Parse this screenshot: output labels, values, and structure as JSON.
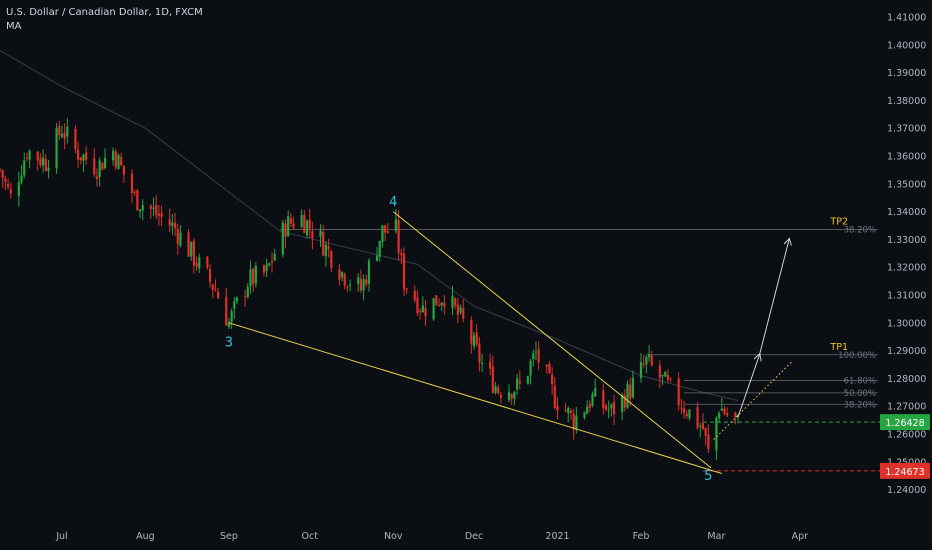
{
  "header": {
    "title": "U.S. Dollar / Canadian Dollar, 1D, FXCM",
    "indicator": "MA"
  },
  "colors": {
    "background": "#0b0e13",
    "up": "#26a641",
    "down": "#e0302a",
    "ma": "#3a3f48",
    "wedge": "#e8d44d",
    "wave_label": "#35c3d6",
    "level_line": "#8c8f96",
    "tp_label": "#f0c419",
    "arrow": "#cfd3da",
    "price_tag_green": "#26a641",
    "price_tag_red": "#e0302a",
    "axis_text": "#b2b5be"
  },
  "chart_data": {
    "type": "candlestick",
    "y_axis": {
      "ticks": [
        "1.41000",
        "1.40000",
        "1.39000",
        "1.38000",
        "1.37000",
        "1.36000",
        "1.35000",
        "1.34000",
        "1.33000",
        "1.32000",
        "1.31000",
        "1.30000",
        "1.29000",
        "1.28000",
        "1.27000",
        "1.26000",
        "1.25000",
        "1.24000"
      ],
      "range": [
        1.233,
        1.415
      ]
    },
    "x_axis": {
      "ticks": [
        "Jul",
        "Aug",
        "Sep",
        "Oct",
        "Nov",
        "Dec",
        "2021",
        "Feb",
        "Mar",
        "Apr"
      ],
      "range": [
        "2020-06-08",
        "2021-04-30"
      ]
    },
    "price_path": [
      [
        "2020-06-08",
        1.355
      ],
      [
        "2020-06-12",
        1.345
      ],
      [
        "2020-06-18",
        1.362
      ],
      [
        "2020-06-25",
        1.358
      ],
      [
        "2020-07-01",
        1.37
      ],
      [
        "2020-07-06",
        1.362
      ],
      [
        "2020-07-14",
        1.356
      ],
      [
        "2020-07-20",
        1.362
      ],
      [
        "2020-07-28",
        1.345
      ],
      [
        "2020-08-04",
        1.34
      ],
      [
        "2020-08-12",
        1.334
      ],
      [
        "2020-08-20",
        1.322
      ],
      [
        "2020-08-27",
        1.312
      ],
      [
        "2020-09-01",
        1.3
      ],
      [
        "2020-09-08",
        1.315
      ],
      [
        "2020-09-15",
        1.318
      ],
      [
        "2020-09-22",
        1.335
      ],
      [
        "2020-09-28",
        1.338
      ],
      [
        "2020-10-05",
        1.33
      ],
      [
        "2020-10-13",
        1.318
      ],
      [
        "2020-10-20",
        1.312
      ],
      [
        "2020-10-28",
        1.333
      ],
      [
        "2020-11-02",
        1.333
      ],
      [
        "2020-11-05",
        1.315
      ],
      [
        "2020-11-12",
        1.305
      ],
      [
        "2020-11-20",
        1.31
      ],
      [
        "2020-11-27",
        1.3
      ],
      [
        "2020-12-04",
        1.285
      ],
      [
        "2020-12-10",
        1.276
      ],
      [
        "2020-12-18",
        1.277
      ],
      [
        "2020-12-24",
        1.289
      ],
      [
        "2020-12-31",
        1.273
      ],
      [
        "2021-01-07",
        1.265
      ],
      [
        "2021-01-14",
        1.273
      ],
      [
        "2021-01-21",
        1.268
      ],
      [
        "2021-01-28",
        1.276
      ],
      [
        "2021-02-03",
        1.286
      ],
      [
        "2021-02-10",
        1.278
      ],
      [
        "2021-02-17",
        1.27
      ],
      [
        "2021-02-24",
        1.262
      ],
      [
        "2021-02-26",
        1.253
      ],
      [
        "2021-03-02",
        1.27
      ],
      [
        "2021-03-05",
        1.267
      ],
      [
        "2021-03-09",
        1.264
      ]
    ],
    "ma_path": [
      [
        "2020-06-08",
        1.398
      ],
      [
        "2020-07-01",
        1.385
      ],
      [
        "2020-08-01",
        1.37
      ],
      [
        "2020-09-01",
        1.347
      ],
      [
        "2020-09-20",
        1.333
      ],
      [
        "2020-10-15",
        1.327
      ],
      [
        "2020-11-10",
        1.321
      ],
      [
        "2020-12-01",
        1.306
      ],
      [
        "2021-01-01",
        1.294
      ],
      [
        "2021-02-01",
        1.281
      ],
      [
        "2021-02-20",
        1.276
      ],
      [
        "2021-03-09",
        1.272
      ]
    ],
    "wave_labels": [
      {
        "label": "3",
        "date": "2020-09-01",
        "value": 1.2965
      },
      {
        "label": "4",
        "date": "2020-11-01",
        "value": 1.3405
      },
      {
        "label": "5",
        "date": "2021-02-26",
        "value": 1.2485
      }
    ],
    "wedge_lines": [
      {
        "from": [
          "2020-09-01",
          1.3
        ],
        "to": [
          "2021-03-03",
          1.2458
        ]
      },
      {
        "from": [
          "2020-11-01",
          1.34
        ],
        "to": [
          "2021-02-27",
          1.2478
        ]
      }
    ],
    "levels": [
      {
        "name": "TP2",
        "ratio": "38.20%",
        "value": 1.3336,
        "from": "2020-09-20"
      },
      {
        "name": "TP1",
        "ratio": "100.00%",
        "value": 1.2885,
        "from": "2021-02-03"
      },
      {
        "name": "",
        "ratio": "61.80%",
        "value": 1.2792,
        "from": "2021-02-17"
      },
      {
        "name": "",
        "ratio": "50.00%",
        "value": 1.2748,
        "from": "2021-02-17"
      },
      {
        "name": "",
        "ratio": "38.20%",
        "value": 1.2707,
        "from": "2021-02-17"
      }
    ],
    "dashed_levels": [
      {
        "value": 1.26428,
        "label": "1.26428",
        "color": "green"
      },
      {
        "value": 1.24673,
        "label": "1.24673",
        "color": "red"
      }
    ],
    "projections": [
      {
        "style": "solid",
        "from": [
          "2021-03-09",
          1.266
        ],
        "to": [
          "2021-03-17",
          1.2885
        ]
      },
      {
        "style": "solid",
        "from": [
          "2021-03-17",
          1.2885
        ],
        "to": [
          "2021-03-28",
          1.33
        ]
      },
      {
        "style": "dotted",
        "from": [
          "2021-02-28",
          1.258
        ],
        "to": [
          "2021-03-29",
          1.286
        ]
      }
    ]
  }
}
